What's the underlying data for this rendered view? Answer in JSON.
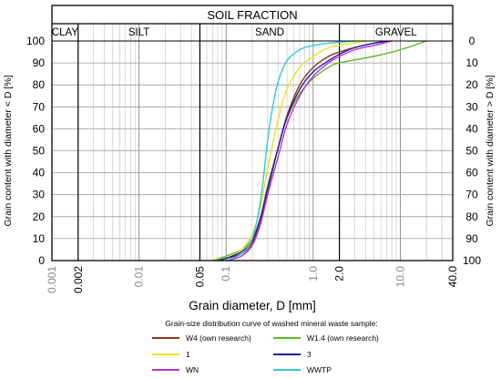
{
  "chart_data": {
    "type": "line",
    "header_title": "SOIL FRACTION",
    "fractions": [
      {
        "name": "CLAY",
        "from": 0.001,
        "to": 0.002
      },
      {
        "name": "SILT",
        "from": 0.002,
        "to": 0.05
      },
      {
        "name": "SAND",
        "from": 0.05,
        "to": 2.0
      },
      {
        "name": "GRAVEL",
        "from": 2.0,
        "to": 40.0
      }
    ],
    "x_scale": "log",
    "xlim": [
      0.001,
      40.0
    ],
    "ylim": [
      0,
      100
    ],
    "xlabel": "Grain diameter, D [mm]",
    "ylabel_left": "Grain content with diameter < D [%]",
    "ylabel_right": "Grain content with diameter > D [%]",
    "x_ticks": [
      {
        "value": 0.001,
        "label": "0.001",
        "emphasis": false
      },
      {
        "value": 0.002,
        "label": "0.002",
        "emphasis": true
      },
      {
        "value": 0.01,
        "label": "0.01",
        "emphasis": false
      },
      {
        "value": 0.05,
        "label": "0.05",
        "emphasis": true
      },
      {
        "value": 0.1,
        "label": "0.1",
        "emphasis": false
      },
      {
        "value": 1.0,
        "label": "1.0",
        "emphasis": false
      },
      {
        "value": 2.0,
        "label": "2.0",
        "emphasis": true
      },
      {
        "value": 10.0,
        "label": "10.0",
        "emphasis": false
      },
      {
        "value": 40.0,
        "label": "40.0",
        "emphasis": true
      }
    ],
    "y_ticks_left": [
      "0",
      "10",
      "20",
      "30",
      "40",
      "50",
      "60",
      "70",
      "80",
      "90",
      "100"
    ],
    "y_ticks_right": [
      "100",
      "90",
      "80",
      "70",
      "60",
      "50",
      "40",
      "30",
      "20",
      "10",
      "0"
    ],
    "grid": true,
    "legend_title": "Grain-size distribution curve of washed mineral waste sample:",
    "legend_position": "bottom",
    "series": [
      {
        "name": "W4 (own research)",
        "color": "#8B3A1A",
        "x": [
          0.07,
          0.1,
          0.15,
          0.2,
          0.25,
          0.3,
          0.4,
          0.5,
          0.7,
          1.0,
          1.5,
          2.0,
          3.0,
          5.0,
          8.0
        ],
        "y": [
          0,
          1,
          3,
          8,
          18,
          32,
          52,
          66,
          80,
          88,
          93,
          95,
          97,
          99,
          100
        ]
      },
      {
        "name": "W1.4 (own research)",
        "color": "#55BB22",
        "x": [
          0.07,
          0.1,
          0.15,
          0.2,
          0.25,
          0.3,
          0.4,
          0.5,
          0.7,
          1.0,
          1.5,
          2.0,
          5.0,
          10.0,
          20.0
        ],
        "y": [
          0,
          2,
          5,
          10,
          20,
          34,
          52,
          65,
          76,
          83,
          88,
          90,
          93,
          96,
          100
        ]
      },
      {
        "name": "1",
        "color": "#F0E020",
        "x": [
          0.07,
          0.1,
          0.15,
          0.2,
          0.25,
          0.3,
          0.4,
          0.5,
          0.7,
          1.0,
          1.5,
          2.0,
          4.0
        ],
        "y": [
          0,
          1,
          5,
          12,
          25,
          42,
          65,
          78,
          88,
          93,
          97,
          98,
          100
        ]
      },
      {
        "name": "3",
        "color": "#2020A0",
        "x": [
          0.08,
          0.1,
          0.15,
          0.2,
          0.25,
          0.3,
          0.4,
          0.5,
          0.7,
          1.0,
          1.5,
          2.0,
          3.0,
          5.0,
          7.0
        ],
        "y": [
          0,
          1,
          4,
          9,
          20,
          33,
          52,
          65,
          78,
          86,
          91,
          94,
          97,
          99,
          100
        ]
      },
      {
        "name": "WN",
        "color": "#C030D0",
        "x": [
          0.1,
          0.15,
          0.2,
          0.25,
          0.3,
          0.4,
          0.5,
          0.7,
          1.0,
          1.5,
          2.0,
          3.0,
          5.0,
          8.0
        ],
        "y": [
          0,
          2,
          7,
          17,
          30,
          48,
          62,
          75,
          84,
          90,
          93,
          96,
          98,
          100
        ]
      },
      {
        "name": "WWTP",
        "color": "#30C8E0",
        "x": [
          0.1,
          0.15,
          0.2,
          0.25,
          0.3,
          0.35,
          0.4,
          0.5,
          0.7,
          1.0,
          1.5,
          2.0,
          3.0
        ],
        "y": [
          0,
          3,
          10,
          28,
          55,
          72,
          82,
          91,
          96,
          98,
          99,
          99.5,
          100
        ]
      }
    ]
  }
}
